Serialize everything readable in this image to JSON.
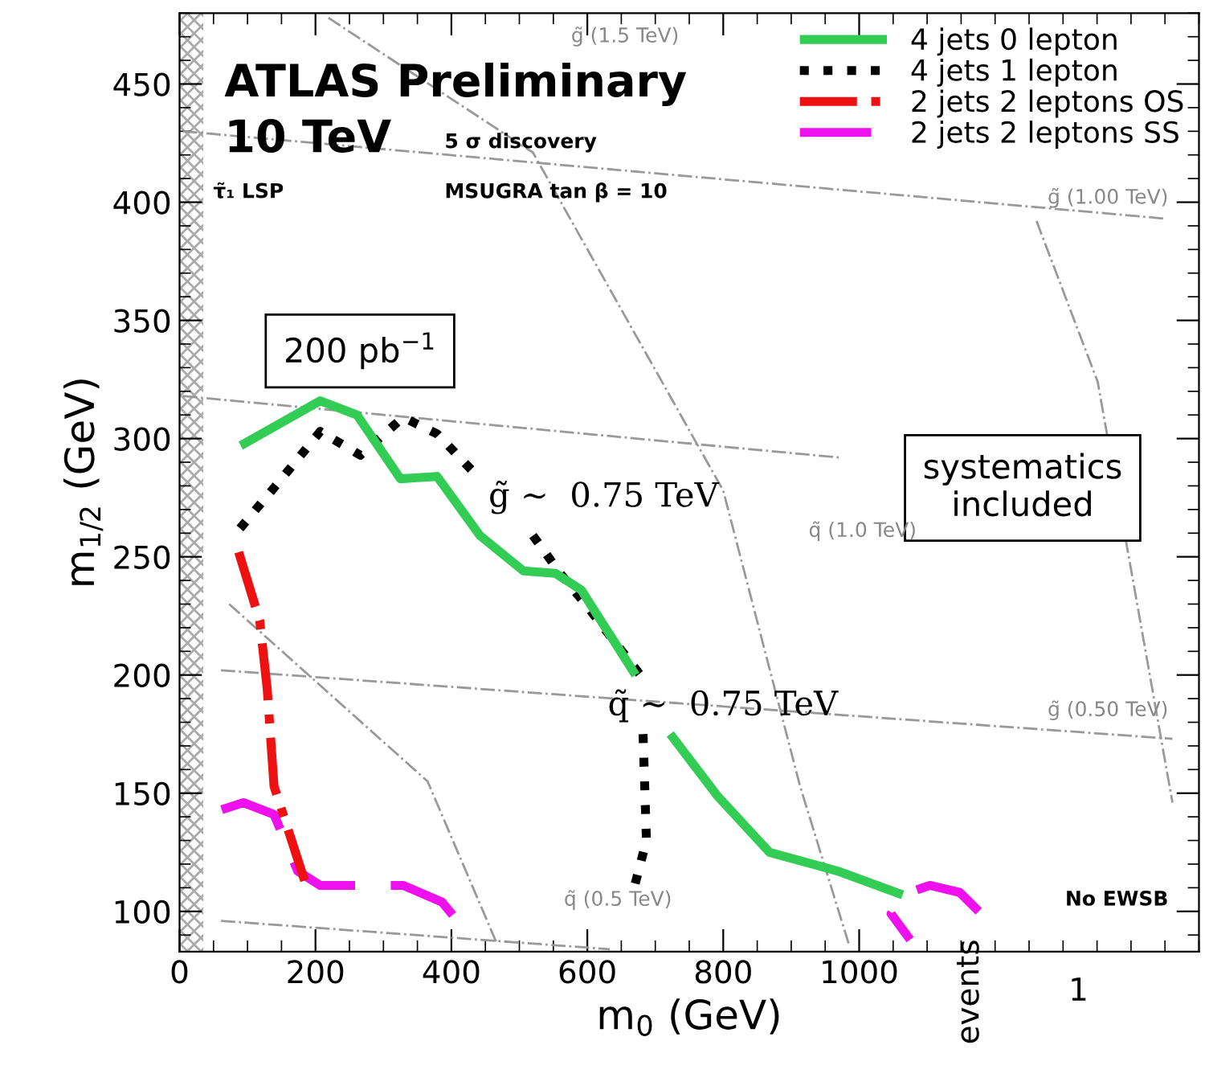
{
  "chart_data": {
    "type": "line",
    "xlabel": "m$_{0}$ (GeV)",
    "ylabel": "m$_{1/2}$ (GeV)",
    "xlim": [
      0,
      1500
    ],
    "ylim": [
      83,
      480
    ],
    "xticks": [
      0,
      200,
      400,
      600,
      800,
      1000
    ],
    "yticks": [
      100,
      150,
      200,
      250,
      300,
      350,
      400,
      450
    ],
    "grid": false,
    "legend": "top right",
    "marker": "none",
    "series": [
      {
        "name": "4 jets 0 lepton",
        "color": "#33cc55",
        "line_style": "solid",
        "x": [
          90,
          207,
          261,
          325,
          379,
          442,
          506,
          553,
          591,
          671,
          696,
          722,
          791,
          868,
          969,
          1064
        ],
        "values": [
          297,
          316,
          310,
          283,
          284,
          259,
          244,
          243,
          236,
          200,
          null,
          175,
          149,
          125,
          117,
          107
        ]
      },
      {
        "name": "4 jets 1 lepton",
        "color": "#000000",
        "line_style": "dotted",
        "x": [
          89,
          153,
          207,
          266,
          329,
          379,
          442,
          480,
          520,
          560,
          600,
          678,
          680,
          682,
          687,
          668
        ],
        "values": [
          262,
          284,
          303,
          293,
          309,
          302,
          283,
          null,
          259,
          243,
          229,
          200,
          null,
          175,
          130,
          109
        ]
      },
      {
        "name": "2 jets 2 leptons OS",
        "color": "#ee1111",
        "line_style": "dashdot",
        "x": [
          87,
          118,
          129,
          139,
          184
        ],
        "values": [
          252,
          223,
          194,
          153,
          113
        ]
      },
      {
        "name": "2 jets 2 leptons SS",
        "color": "#ee11ee",
        "line_style": "dashed",
        "x": [
          62,
          94,
          139,
          174,
          207,
          329,
          386,
          409,
          700,
          1176,
          1148,
          1104,
          1064,
          1047,
          1075
        ],
        "values": [
          143,
          146,
          141,
          117,
          111,
          111,
          104,
          96,
          null,
          100,
          108,
          111,
          107,
          99,
          88
        ]
      },
      {
        "color": "#999999",
        "line_style": "dashdot",
        "x": [
          5,
          970
        ],
        "values": [
          318,
          292
        ]
      },
      {
        "color": "#999999",
        "line_style": "dashdot",
        "x": [
          5,
          1452
        ],
        "values": [
          430,
          393
        ]
      },
      {
        "color": "#999999",
        "line_style": "dashdot",
        "x": [
          61,
          1461
        ],
        "values": [
          202,
          173
        ]
      },
      {
        "color": "#999999",
        "line_style": "dashdot",
        "x": [
          61,
          633
        ],
        "values": [
          96,
          84
        ]
      },
      {
        "color": "#999999",
        "line_style": "dashdot",
        "x": [
          73,
          365,
          466
        ],
        "values": [
          230,
          155,
          87
        ]
      },
      {
        "color": "#999999",
        "line_style": "dashdot",
        "x": [
          219,
          520,
          800,
          913,
          986
        ],
        "values": [
          478,
          421,
          278,
          153,
          85
        ]
      },
      {
        "color": "#999999",
        "line_style": "dashdot",
        "x": [
          1261,
          1351,
          1461
        ],
        "values": [
          392,
          324,
          146
        ]
      }
    ],
    "bands": [
      {
        "axis": "x",
        "from": 0,
        "to": 35,
        "color": "#aaaaaa"
      }
    ],
    "annotations": [
      "ATLAS Preliminary",
      "10 TeV",
      "5 σ discovery",
      "τ̃₁ LSP",
      "MSUGRA tan β = 10",
      "200 pb$^{−1}$",
      "systematics\nincluded",
      "g̃ ~  0.75 TeV",
      "q̃ ~  0.75 TeV",
      "g̃ (1.5 TeV)",
      "g̃ (1.00 TeV)",
      "q̃ (1.0 TeV)",
      "g̃ (0.50 TeV)",
      "q̃ (0.5 TeV)",
      "No EWSB",
      "events",
      "1"
    ]
  }
}
